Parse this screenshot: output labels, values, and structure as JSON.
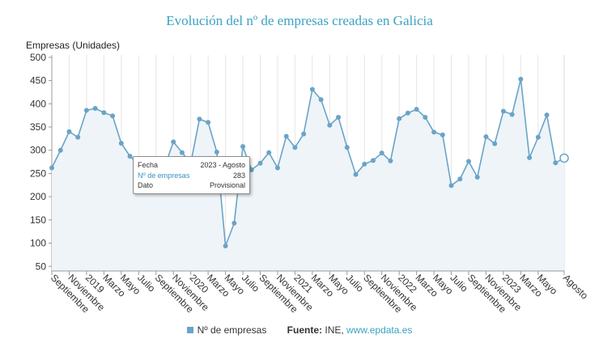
{
  "title": "Evolución del nº de empresas creadas en Galicia",
  "ylabel": "Empresas (Unidades)",
  "tooltip": {
    "fecha_label": "Fecha",
    "fecha_value": "2023 - Agosto",
    "serie_label": "Nº de empresas",
    "serie_value": "283",
    "dato_label": "Dato",
    "dato_value": "Provisional"
  },
  "legend": {
    "series_label": "Nº de empresas",
    "source_label": "Fuente:",
    "source_text": "INE,",
    "source_link": "www.epdata.es"
  },
  "colors": {
    "line": "#6ba3c7",
    "fill": "#eef4f8",
    "highlight_marker": "#ffffff",
    "title": "#3aa3c2"
  },
  "chart_data": {
    "type": "area",
    "ylim": [
      40,
      505
    ],
    "yticks": [
      50,
      100,
      150,
      200,
      250,
      300,
      350,
      400,
      450,
      500
    ],
    "grid": "vertical",
    "x_tick_labels": [
      {
        "index": 0,
        "label": "Septiembre"
      },
      {
        "index": 2,
        "label": "Noviembre"
      },
      {
        "index": 4,
        "label": "2019"
      },
      {
        "index": 6,
        "label": "Marzo"
      },
      {
        "index": 8,
        "label": "Mayo"
      },
      {
        "index": 10,
        "label": "Julio"
      },
      {
        "index": 12,
        "label": "Septiembre"
      },
      {
        "index": 14,
        "label": "Noviembre"
      },
      {
        "index": 16,
        "label": "2020"
      },
      {
        "index": 18,
        "label": "Marzo"
      },
      {
        "index": 20,
        "label": "Mayo"
      },
      {
        "index": 22,
        "label": "Julio"
      },
      {
        "index": 24,
        "label": "Septiembre"
      },
      {
        "index": 26,
        "label": "Noviembre"
      },
      {
        "index": 28,
        "label": "2021"
      },
      {
        "index": 30,
        "label": "Marzo"
      },
      {
        "index": 32,
        "label": "Mayo"
      },
      {
        "index": 34,
        "label": "Julio"
      },
      {
        "index": 36,
        "label": "Septiembre"
      },
      {
        "index": 38,
        "label": "Noviembre"
      },
      {
        "index": 40,
        "label": "2022"
      },
      {
        "index": 42,
        "label": "Marzo"
      },
      {
        "index": 44,
        "label": "Mayo"
      },
      {
        "index": 46,
        "label": "Julio"
      },
      {
        "index": 48,
        "label": "Septiembre"
      },
      {
        "index": 50,
        "label": "Noviembre"
      },
      {
        "index": 52,
        "label": "2023"
      },
      {
        "index": 54,
        "label": "Marzo"
      },
      {
        "index": 56,
        "label": "Mayo"
      },
      {
        "index": 59,
        "label": "Agosto"
      }
    ],
    "highlight_index": 59,
    "series": [
      {
        "name": "Nº de empresas",
        "values": [
          262,
          300,
          340,
          328,
          386,
          390,
          381,
          374,
          315,
          287,
          270,
          275,
          267,
          265,
          318,
          295,
          272,
          367,
          360,
          296,
          94,
          143,
          308,
          258,
          272,
          295,
          262,
          330,
          306,
          335,
          431,
          409,
          354,
          371,
          306,
          248,
          270,
          278,
          294,
          277,
          368,
          380,
          388,
          371,
          339,
          333,
          224,
          238,
          276,
          242,
          329,
          314,
          384,
          377,
          453,
          284,
          328,
          376,
          273,
          283
        ]
      }
    ]
  }
}
